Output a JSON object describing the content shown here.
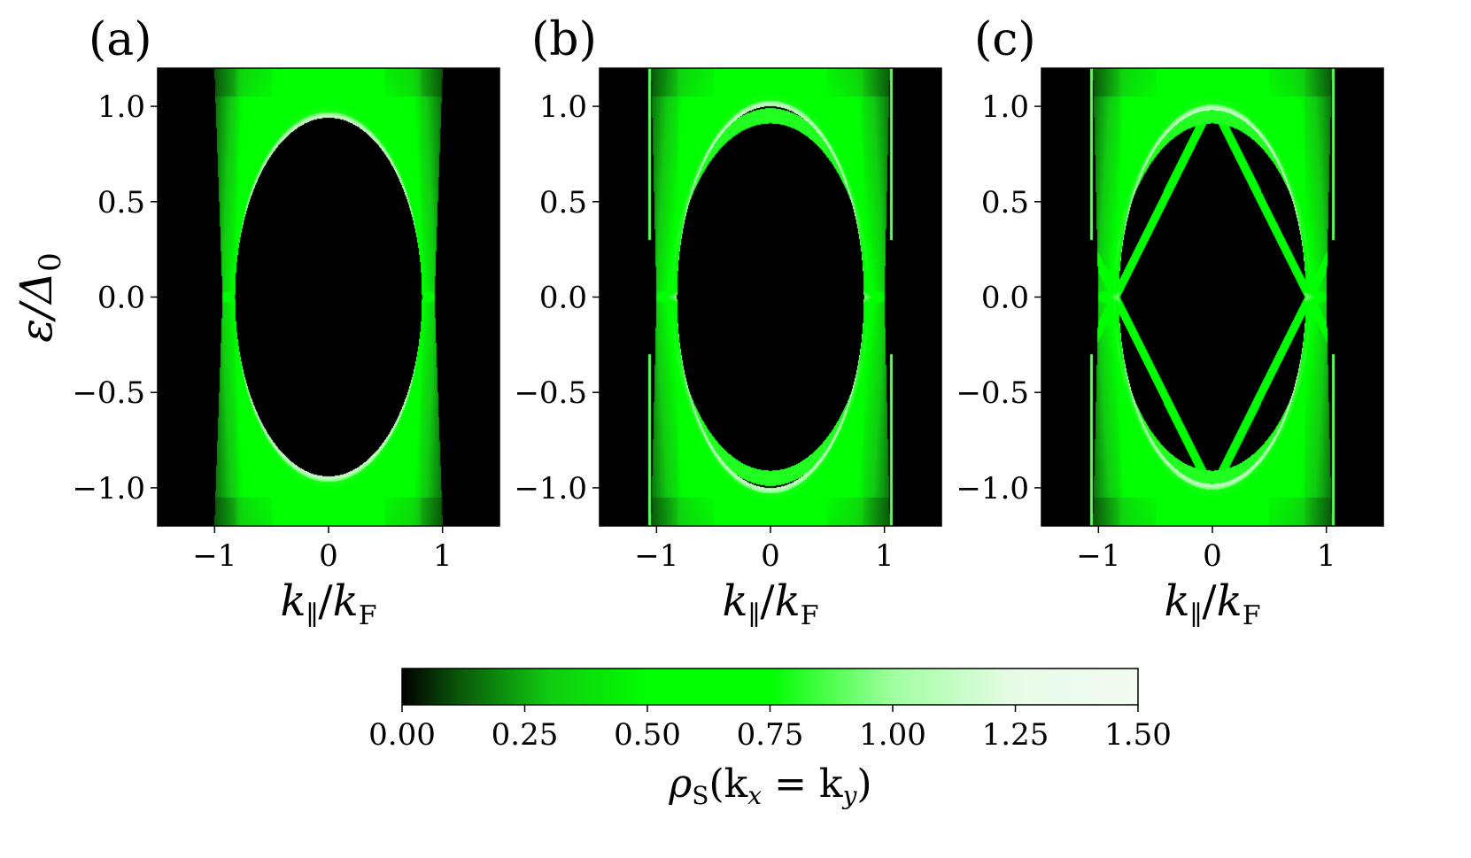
{
  "chart_data": {
    "type": "heatmap",
    "panels": [
      {
        "id": "a",
        "label": "(a)",
        "variant": "a"
      },
      {
        "id": "b",
        "label": "(b)",
        "variant": "b"
      },
      {
        "id": "c",
        "label": "(c)",
        "variant": "c"
      }
    ],
    "x_axis": {
      "label_main": "k",
      "label_sub": "∥",
      "label_slash": "/",
      "label_main2": "k",
      "label_sub2": "F",
      "range": [
        -1.5,
        1.5
      ],
      "ticks": [
        -1,
        0,
        1
      ],
      "tick_labels": [
        "−1",
        "0",
        "1"
      ]
    },
    "y_axis": {
      "label": "ε/Δ",
      "label_sub": "0",
      "range": [
        -1.2,
        1.2
      ],
      "ticks": [
        1.0,
        0.5,
        0.0,
        -0.5,
        -1.0
      ],
      "tick_labels": [
        "1.0",
        "0.5",
        "0.0",
        "−0.5",
        "−1.0"
      ]
    },
    "colorbar": {
      "label_main": "ρ",
      "label_sub": "S",
      "label_rest": "(k",
      "label_sub_x": "x",
      "label_eq": " = k",
      "label_sub_y": "y",
      "label_close": ")",
      "range": [
        0.0,
        1.5
      ],
      "ticks": [
        0.0,
        0.25,
        0.5,
        0.75,
        1.0,
        1.25,
        1.5
      ],
      "tick_labels": [
        "0.00",
        "0.25",
        "0.50",
        "0.75",
        "1.00",
        "1.25",
        "1.50"
      ],
      "stops": [
        {
          "v": 0.0,
          "color": "#000000"
        },
        {
          "v": 0.12,
          "color": "#0a5a0a"
        },
        {
          "v": 0.3,
          "color": "#11cc11"
        },
        {
          "v": 0.5,
          "color": "#00ff00"
        },
        {
          "v": 0.75,
          "color": "#00ff00"
        },
        {
          "v": 1.0,
          "color": "#a0ffa0"
        },
        {
          "v": 1.25,
          "color": "#e8fbe8"
        },
        {
          "v": 1.5,
          "color": "#f2fcf2"
        }
      ]
    }
  }
}
